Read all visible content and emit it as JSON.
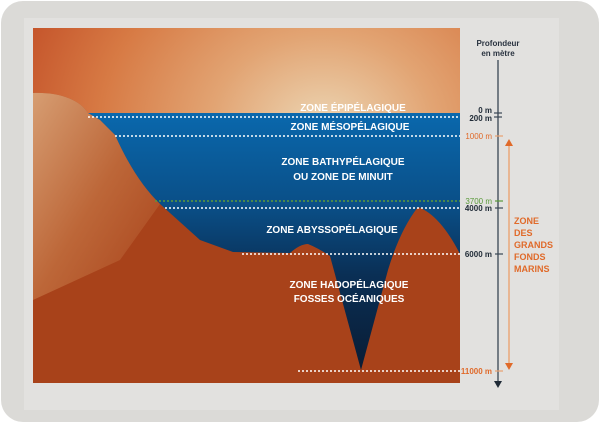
{
  "axis": {
    "title_line1": "Profondeur",
    "title_line2": "en mètre"
  },
  "zones": {
    "epipelagic": "ZONE ÉPIPÉLAGIQUE",
    "mesopelagic": "ZONE MÉSOPÉLAGIQUE",
    "bathypelagic_line1": "ZONE BATHYPÉLAGIQUE",
    "bathypelagic_line2": "OU ZONE DE MINUIT",
    "abyssopelagic": "ZONE ABYSSOPÉLAGIQUE",
    "hadopelagic_line1": "ZONE HADOPÉLAGIQUE",
    "hadopelagic_line2": "FOSSES OCÉANIQUES"
  },
  "depths": [
    {
      "label": "0 m",
      "color": "#1f2a36"
    },
    {
      "label": "200 m",
      "color": "#1f2a36"
    },
    {
      "label": "1000 m",
      "color": "#e06a2a"
    },
    {
      "label": "3700 m",
      "color": "#5a9a3a"
    },
    {
      "label": "4000 m",
      "color": "#1f2a36"
    },
    {
      "label": "6000 m",
      "color": "#1f2a36"
    },
    {
      "label": "11000 m",
      "color": "#e06a2a"
    }
  ],
  "deep_sea_zone": {
    "line1": "ZONE",
    "line2": "DES",
    "line3": "GRANDS",
    "line4": "FONDS",
    "line5": "MARINS",
    "color": "#e06a2a"
  },
  "colors": {
    "sky_light": "#e8d2b0",
    "sky_dark": "#c8582a",
    "water_top": "#0a64a8",
    "water_bottom": "#0a1a30",
    "seabed": "#a8421a"
  }
}
